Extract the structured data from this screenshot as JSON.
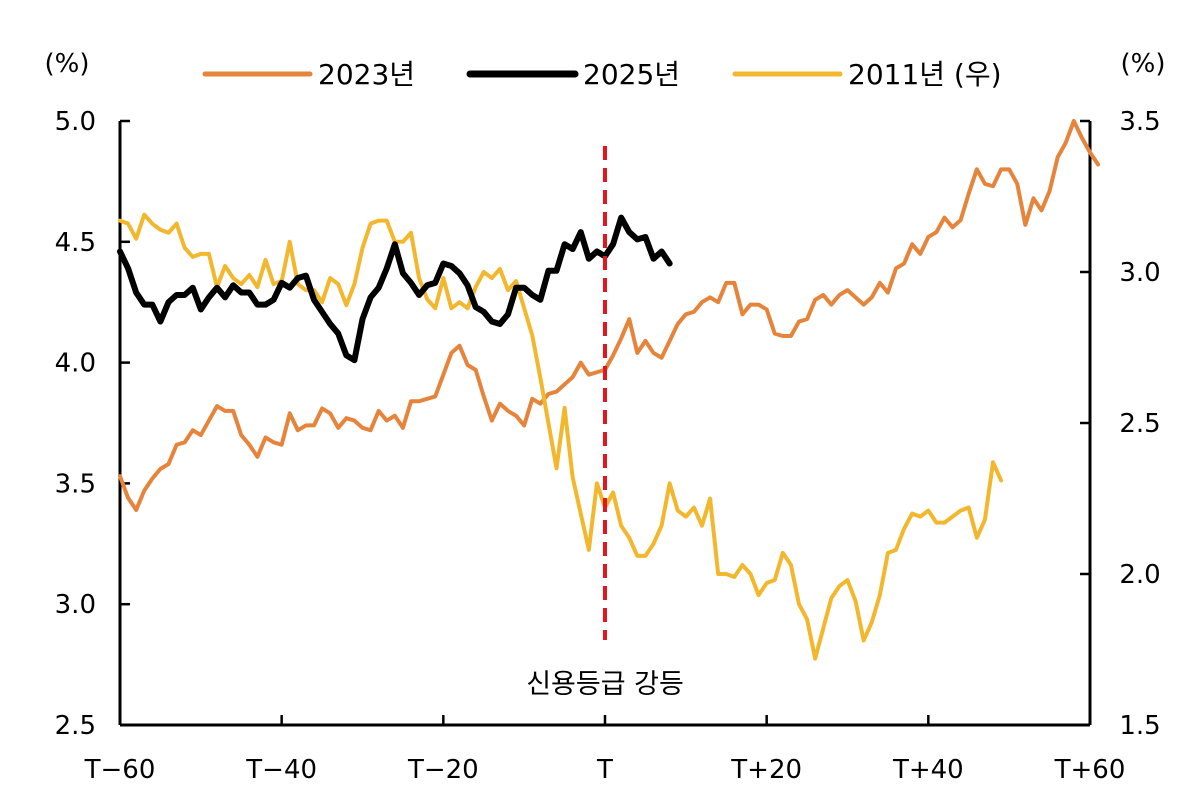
{
  "chart_data": {
    "type": "line",
    "x_tick_labels": [
      "T−60",
      "T−40",
      "T−20",
      "T",
      "T+20",
      "T+40",
      "T+60"
    ],
    "x_ticks": [
      -60,
      -40,
      -20,
      0,
      20,
      40,
      60
    ],
    "xlim": [
      -60,
      60
    ],
    "left_axis": {
      "unit": "(%)",
      "ylim": [
        2.5,
        5.0
      ],
      "ticks": [
        2.5,
        3.0,
        3.5,
        4.0,
        4.5,
        5.0
      ],
      "tick_labels": [
        "2.5",
        "3.0",
        "3.5",
        "4.0",
        "4.5",
        "5.0"
      ]
    },
    "right_axis": {
      "unit": "(%)",
      "ylim": [
        1.5,
        3.5
      ],
      "ticks": [
        1.5,
        2.0,
        2.5,
        3.0,
        3.5
      ],
      "tick_labels": [
        "1.5",
        "2.0",
        "2.5",
        "3.0",
        "3.5"
      ]
    },
    "series": [
      {
        "name": "2023년",
        "color": "#E5843A",
        "axis": "left",
        "x_start": -60,
        "values": [
          3.53,
          3.44,
          3.39,
          3.47,
          3.52,
          3.56,
          3.58,
          3.66,
          3.67,
          3.72,
          3.7,
          3.76,
          3.82,
          3.8,
          3.8,
          3.7,
          3.66,
          3.61,
          3.69,
          3.67,
          3.66,
          3.79,
          3.72,
          3.74,
          3.74,
          3.81,
          3.79,
          3.73,
          3.77,
          3.76,
          3.73,
          3.72,
          3.8,
          3.76,
          3.78,
          3.73,
          3.84,
          3.84,
          3.85,
          3.86,
          3.95,
          4.04,
          4.07,
          3.99,
          3.97,
          3.86,
          3.76,
          3.83,
          3.8,
          3.78,
          3.74,
          3.85,
          3.83,
          3.87,
          3.88,
          3.91,
          3.94,
          4.0,
          3.95,
          3.96,
          3.97,
          4.03,
          4.1,
          4.18,
          4.04,
          4.09,
          4.04,
          4.02,
          4.09,
          4.16,
          4.2,
          4.21,
          4.25,
          4.27,
          4.25,
          4.33,
          4.33,
          4.2,
          4.24,
          4.24,
          4.22,
          4.12,
          4.11,
          4.11,
          4.17,
          4.18,
          4.26,
          4.28,
          4.24,
          4.28,
          4.3,
          4.27,
          4.24,
          4.27,
          4.33,
          4.29,
          4.39,
          4.41,
          4.49,
          4.45,
          4.52,
          4.54,
          4.6,
          4.56,
          4.59,
          4.7,
          4.8,
          4.74,
          4.73,
          4.8,
          4.8,
          4.74,
          4.57,
          4.68,
          4.63,
          4.71,
          4.85,
          4.91,
          5.0,
          4.93,
          4.87,
          4.82
        ]
      },
      {
        "name": "2025년",
        "color": "#000000",
        "axis": "left",
        "x_start": -60,
        "values": [
          4.46,
          4.39,
          4.29,
          4.24,
          4.24,
          4.17,
          4.25,
          4.28,
          4.28,
          4.31,
          4.22,
          4.27,
          4.31,
          4.27,
          4.32,
          4.29,
          4.29,
          4.24,
          4.24,
          4.26,
          4.33,
          4.31,
          4.35,
          4.36,
          4.26,
          4.21,
          4.16,
          4.12,
          4.03,
          4.01,
          4.18,
          4.27,
          4.31,
          4.39,
          4.49,
          4.37,
          4.33,
          4.28,
          4.32,
          4.33,
          4.41,
          4.4,
          4.37,
          4.32,
          4.23,
          4.21,
          4.17,
          4.16,
          4.2,
          4.31,
          4.31,
          4.28,
          4.26,
          4.38,
          4.38,
          4.49,
          4.47,
          4.54,
          4.43,
          4.46,
          4.44,
          4.49,
          4.6,
          4.54,
          4.51,
          4.52,
          4.43,
          4.46,
          4.41
        ]
      },
      {
        "name": "2011년 (우)",
        "color": "#F3B72E",
        "axis": "right",
        "x_start": -60,
        "values": [
          3.17,
          3.16,
          3.11,
          3.19,
          3.16,
          3.14,
          3.13,
          3.16,
          3.08,
          3.05,
          3.06,
          3.06,
          2.95,
          3.02,
          2.98,
          2.96,
          2.99,
          2.95,
          3.04,
          2.96,
          2.97,
          3.1,
          2.96,
          2.94,
          2.94,
          2.9,
          2.98,
          2.96,
          2.89,
          2.96,
          3.08,
          3.16,
          3.17,
          3.17,
          3.1,
          3.1,
          3.13,
          2.98,
          2.91,
          2.88,
          2.98,
          2.88,
          2.9,
          2.88,
          2.95,
          3.0,
          2.98,
          3.01,
          2.94,
          2.97,
          2.88,
          2.79,
          2.65,
          2.5,
          2.35,
          2.55,
          2.32,
          2.2,
          2.08,
          2.3,
          2.22,
          2.27,
          2.16,
          2.12,
          2.06,
          2.06,
          2.1,
          2.16,
          2.3,
          2.21,
          2.19,
          2.22,
          2.16,
          2.25,
          2.0,
          2.0,
          1.99,
          2.03,
          2.0,
          1.93,
          1.97,
          1.98,
          2.07,
          2.03,
          1.9,
          1.85,
          1.72,
          1.82,
          1.92,
          1.96,
          1.98,
          1.91,
          1.78,
          1.84,
          1.93,
          2.07,
          2.08,
          2.15,
          2.2,
          2.19,
          2.21,
          2.17,
          2.17,
          2.19,
          2.21,
          2.22,
          2.12,
          2.18,
          2.37,
          2.31
        ]
      }
    ],
    "annotation": {
      "x": 0,
      "label": "신용등급 강등",
      "color": "#E3161F",
      "style": "dashed"
    },
    "legend_placement": "top-center",
    "grid": false
  }
}
